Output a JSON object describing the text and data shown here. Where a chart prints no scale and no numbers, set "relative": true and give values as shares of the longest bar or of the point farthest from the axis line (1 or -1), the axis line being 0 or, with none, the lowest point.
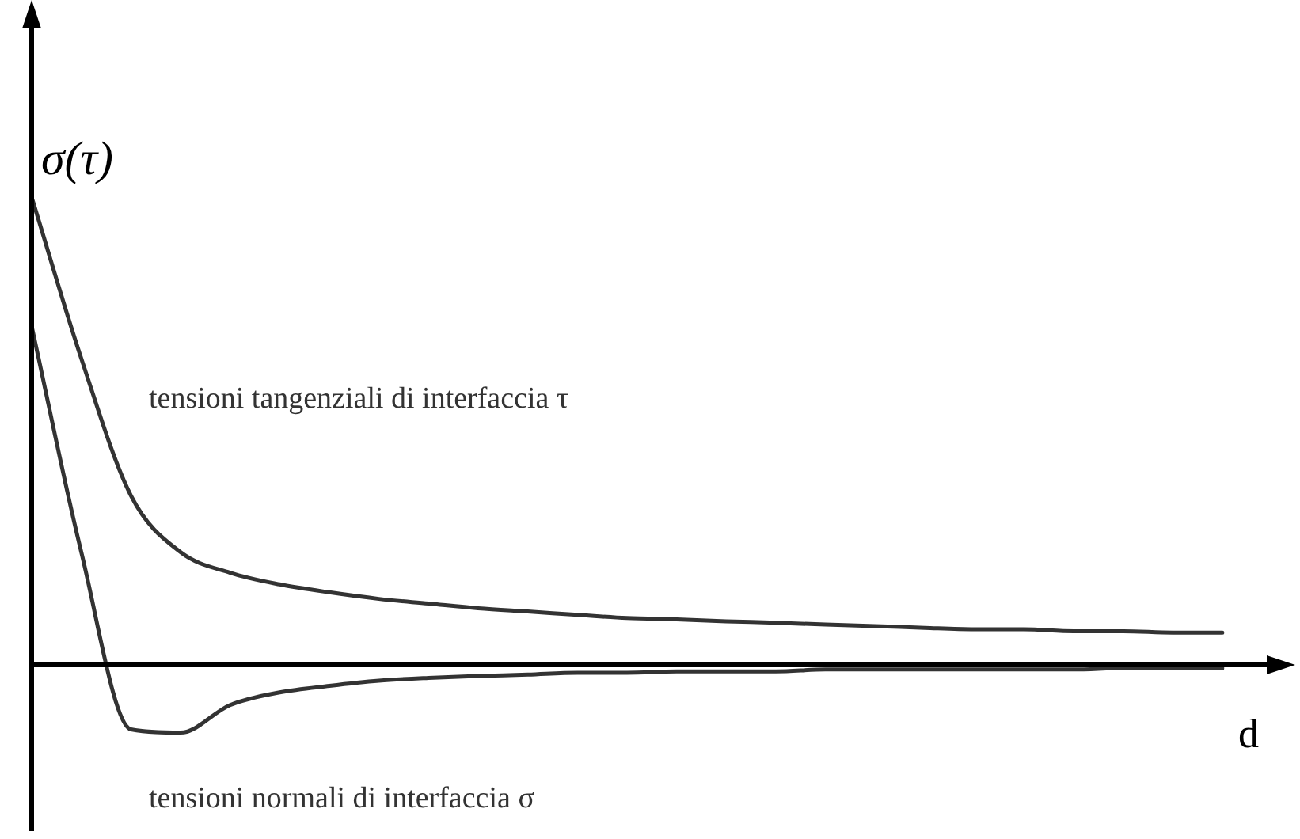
{
  "chart_data": {
    "type": "line",
    "relative": true,
    "ylabel": "σ(τ)",
    "xlabel": "d",
    "legend": false,
    "marker": "none",
    "line_style": "solid",
    "categories": [
      null,
      null,
      null,
      null,
      null,
      null,
      null,
      null,
      null,
      null,
      null,
      null,
      null,
      null,
      null,
      null,
      null,
      null,
      null,
      null,
      null,
      null,
      null,
      null,
      null
    ],
    "series": [
      {
        "name": "tensioni tangenziali di interfaccia τ",
        "color": "#333333",
        "values": [
          1,
          0.655,
          0.362,
          0.241,
          0.197,
          0.172,
          0.155,
          0.141,
          0.131,
          0.121,
          0.114,
          0.107,
          0.1,
          0.097,
          0.093,
          0.09,
          0.086,
          0.083,
          0.079,
          0.076,
          0.076,
          0.072,
          0.072,
          0.069,
          0.069
        ]
      },
      {
        "name": "tensioni normali di interfaccia σ",
        "color": "#333333",
        "values": [
          0.724,
          0.241,
          -0.138,
          -0.145,
          -0.086,
          -0.059,
          -0.045,
          -0.034,
          -0.028,
          -0.024,
          -0.021,
          -0.017,
          -0.017,
          -0.014,
          -0.014,
          -0.014,
          -0.01,
          -0.01,
          -0.01,
          -0.01,
          -0.01,
          -0.01,
          -0.007,
          -0.007,
          -0.007
        ]
      }
    ]
  }
}
